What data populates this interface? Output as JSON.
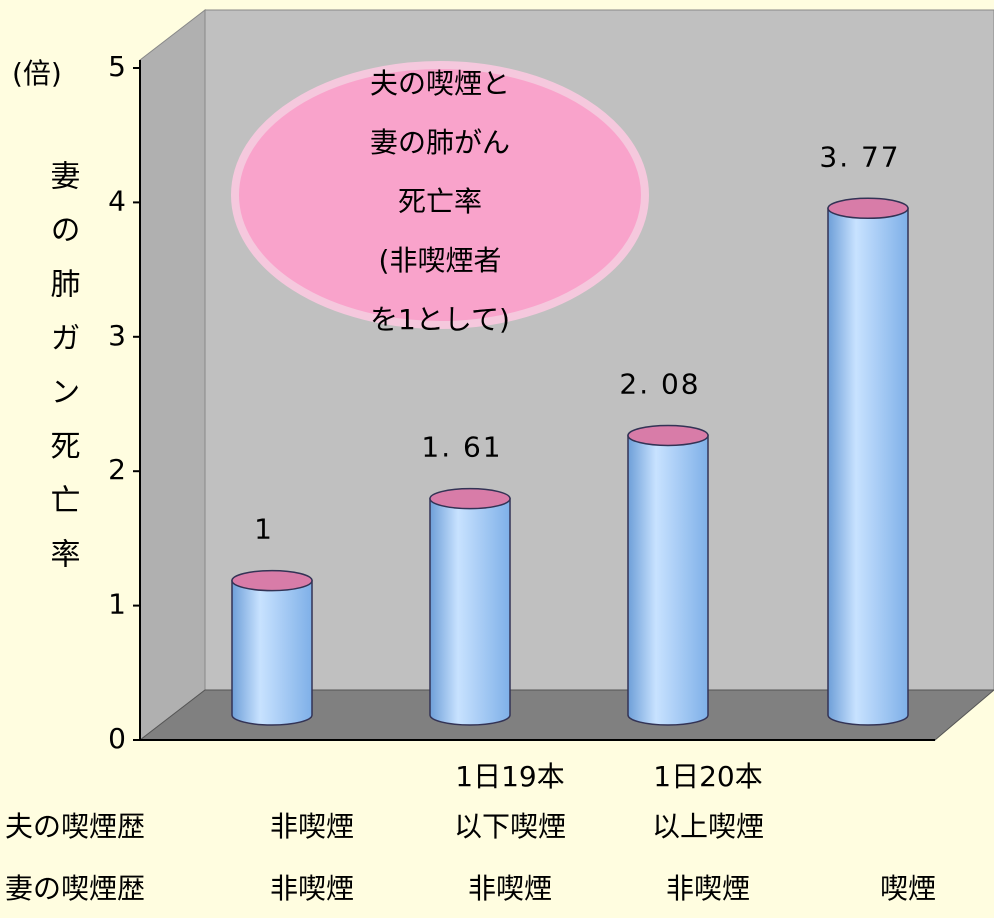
{
  "chart_data": {
    "type": "bar",
    "annotation": [
      "夫の喫煙と",
      "妻の肺がん",
      "死亡率",
      "(非喫煙者",
      "を1として)"
    ],
    "y_unit": "(倍)",
    "y_label": "妻の肺ガン死亡率",
    "category_rows": [
      {
        "label": "夫の喫煙歴",
        "categories": [
          [
            "非喫煙"
          ],
          [
            "1日19本",
            "以下喫煙"
          ],
          [
            "1日20本",
            "以上喫煙"
          ],
          null
        ]
      },
      {
        "label": "妻の喫煙歴",
        "categories": [
          [
            "非喫煙"
          ],
          [
            "非喫煙"
          ],
          [
            "非喫煙"
          ],
          [
            "喫煙"
          ]
        ]
      }
    ],
    "values": [
      1,
      1.61,
      2.08,
      3.77
    ],
    "value_labels": [
      "1",
      "1. 61",
      "2. 08",
      "3. 77"
    ],
    "color": "#a8d0f8",
    "top_color": "#d87ca8",
    "ylim": [
      0,
      5
    ],
    "yticks": [
      0,
      1,
      2,
      3,
      4,
      5
    ]
  }
}
